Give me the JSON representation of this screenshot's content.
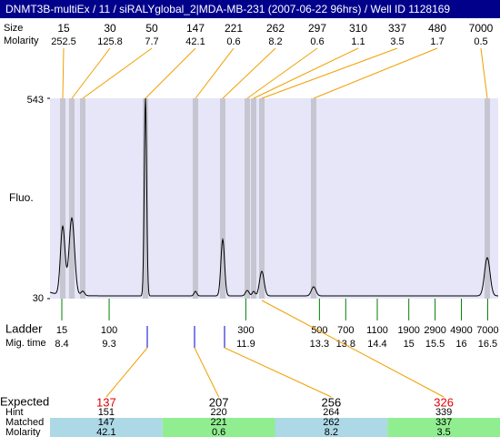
{
  "title": "DNMT3B-multiEx / 11 / siRALYglobal_2|MDA-MB-231 (2007-06-22 96hrs) / Well ID 1128169",
  "peaks": {
    "row_labels": [
      "Size",
      "Molarity"
    ],
    "sizes": [
      15,
      30,
      50,
      147,
      221,
      262,
      297,
      310,
      337,
      480,
      7000
    ],
    "molarity": [
      252.5,
      125.8,
      7.7,
      42.1,
      0.6,
      8.2,
      0.6,
      1.1,
      3.5,
      1.7,
      0.5
    ]
  },
  "chart_data": {
    "type": "line",
    "y_label": "Fluo.",
    "ylim": [
      30,
      543
    ],
    "yticks": [
      30,
      543
    ]
  },
  "ladder": {
    "row_labels": [
      "Ladder",
      "Mig. time"
    ],
    "sizes": [
      15,
      100,
      300,
      500,
      700,
      1100,
      1900,
      2900,
      4900,
      7000
    ],
    "mig_times": [
      8.4,
      9.3,
      11.9,
      13.3,
      13.8,
      14.4,
      15,
      15.5,
      16,
      16.5
    ],
    "xlim": [
      8.175,
      16.7
    ]
  },
  "expected_table": {
    "row_labels": [
      "Expected",
      "Hint",
      "Matched",
      "Molarity"
    ],
    "expected": [
      137,
      207,
      256,
      326
    ],
    "expected_colors": [
      "#e00000",
      "#000000",
      "#000000",
      "#e00000"
    ],
    "hint": [
      151,
      220,
      264,
      339
    ],
    "matched": [
      147,
      221,
      262,
      337
    ],
    "molarity": [
      42.1,
      0.6,
      8.2,
      3.5
    ],
    "row_colors": [
      "#add8e6",
      "#90ee90"
    ]
  }
}
